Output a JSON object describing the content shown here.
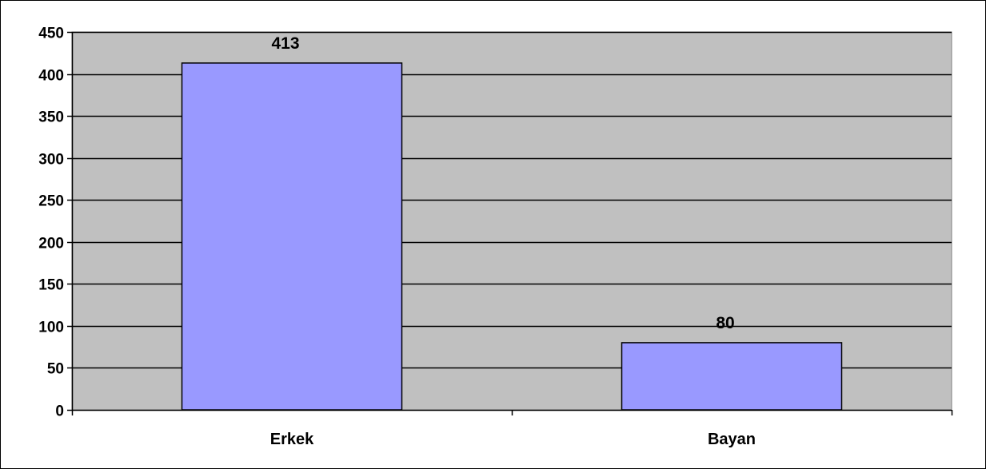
{
  "chart_data": {
    "type": "bar",
    "categories": [
      "Erkek",
      "Bayan"
    ],
    "values": [
      413,
      80
    ],
    "data_labels": [
      "413",
      "80"
    ],
    "ylim": [
      0,
      450
    ],
    "yticks": [
      0,
      50,
      100,
      150,
      200,
      250,
      300,
      350,
      400,
      450
    ],
    "grid": true,
    "legend": "none",
    "colors": {
      "plot_background": "#c0c0c0",
      "bar_fill": "#9999ff",
      "bar_stroke": "#000000",
      "gridline": "#000000"
    }
  }
}
